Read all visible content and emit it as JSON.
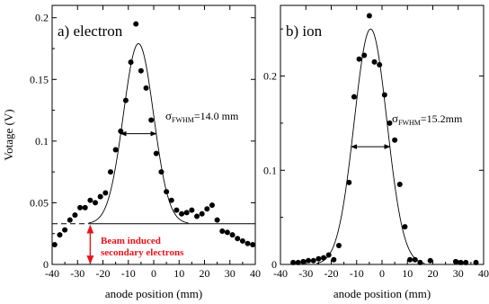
{
  "chart_data": [
    {
      "type": "scatter",
      "panel_label": "a) electron",
      "xlabel": "anode position (mm)",
      "ylabel": "Votage (V)",
      "xlim": [
        -40,
        40
      ],
      "ylim": [
        0,
        0.21
      ],
      "xticks": [
        -40,
        -30,
        -20,
        -10,
        0,
        10,
        20,
        30,
        40
      ],
      "yticks": [
        0,
        0.05,
        0.1,
        0.15,
        0.2
      ],
      "ytick_labels": [
        "0",
        "0.05",
        "0.1",
        "0.15",
        "0.2"
      ],
      "points": [
        {
          "x": -39,
          "y": 0.016
        },
        {
          "x": -37,
          "y": 0.024
        },
        {
          "x": -35,
          "y": 0.028
        },
        {
          "x": -33,
          "y": 0.036
        },
        {
          "x": -31,
          "y": 0.04
        },
        {
          "x": -29,
          "y": 0.046
        },
        {
          "x": -27,
          "y": 0.046
        },
        {
          "x": -25,
          "y": 0.052
        },
        {
          "x": -23,
          "y": 0.05
        },
        {
          "x": -21,
          "y": 0.055
        },
        {
          "x": -19,
          "y": 0.058
        },
        {
          "x": -17,
          "y": 0.075
        },
        {
          "x": -15,
          "y": 0.093
        },
        {
          "x": -13,
          "y": 0.108
        },
        {
          "x": -11,
          "y": 0.133
        },
        {
          "x": -9,
          "y": 0.164
        },
        {
          "x": -7,
          "y": 0.195
        },
        {
          "x": -5,
          "y": 0.157
        },
        {
          "x": -3,
          "y": 0.143
        },
        {
          "x": -1,
          "y": 0.117
        },
        {
          "x": 1,
          "y": 0.09
        },
        {
          "x": 3,
          "y": 0.075
        },
        {
          "x": 5,
          "y": 0.059
        },
        {
          "x": 7,
          "y": 0.052
        },
        {
          "x": 9,
          "y": 0.044
        },
        {
          "x": 11,
          "y": 0.041
        },
        {
          "x": 13,
          "y": 0.042
        },
        {
          "x": 15,
          "y": 0.044
        },
        {
          "x": 17,
          "y": 0.039
        },
        {
          "x": 19,
          "y": 0.041
        },
        {
          "x": 21,
          "y": 0.045
        },
        {
          "x": 23,
          "y": 0.048
        },
        {
          "x": 25,
          "y": 0.036
        },
        {
          "x": 27,
          "y": 0.027
        },
        {
          "x": 29,
          "y": 0.026
        },
        {
          "x": 31,
          "y": 0.024
        },
        {
          "x": 33,
          "y": 0.021
        },
        {
          "x": 35,
          "y": 0.019
        },
        {
          "x": 37,
          "y": 0.017
        },
        {
          "x": 39,
          "y": 0.016
        }
      ],
      "fit": {
        "model": "gaussian",
        "center": -6,
        "amplitude": 0.146,
        "baseline": 0.033,
        "fwhm_mm": 14.0
      },
      "baseline_level": 0.033,
      "fwhm_symbol": "σ",
      "fwhm_sub": "FWHM",
      "fwhm_text": "=14.0 mm",
      "note_line1": "Beam induced",
      "note_line2": "secondary electrons"
    },
    {
      "type": "scatter",
      "panel_label": "b) ion",
      "xlabel": "anode position (mm)",
      "xlim": [
        -40,
        40
      ],
      "ylim": [
        0,
        0.275
      ],
      "xticks": [
        -40,
        -30,
        -20,
        -10,
        0,
        10,
        20,
        30,
        40
      ],
      "yticks": [
        0,
        0.1,
        0.2
      ],
      "ytick_labels": [
        "0",
        "0.1",
        "0.2"
      ],
      "points": [
        {
          "x": -35,
          "y": 0.002
        },
        {
          "x": -33,
          "y": 0.002
        },
        {
          "x": -31,
          "y": 0.003
        },
        {
          "x": -29,
          "y": 0.004
        },
        {
          "x": -27,
          "y": 0.004
        },
        {
          "x": -25,
          "y": 0.006
        },
        {
          "x": -23,
          "y": 0.007
        },
        {
          "x": -21,
          "y": 0.01
        },
        {
          "x": -19,
          "y": 0.005
        },
        {
          "x": -17,
          "y": 0.02
        },
        {
          "x": -13,
          "y": 0.087
        },
        {
          "x": -11,
          "y": 0.178
        },
        {
          "x": -9,
          "y": 0.218
        },
        {
          "x": -7,
          "y": 0.222
        },
        {
          "x": -5,
          "y": 0.264
        },
        {
          "x": -3,
          "y": 0.215
        },
        {
          "x": -1,
          "y": 0.212
        },
        {
          "x": 1,
          "y": 0.18
        },
        {
          "x": 3,
          "y": 0.15
        },
        {
          "x": 5,
          "y": 0.132
        },
        {
          "x": 7,
          "y": 0.085
        },
        {
          "x": 9,
          "y": 0.04
        },
        {
          "x": 11,
          "y": 0.005
        },
        {
          "x": 13,
          "y": 0.005
        },
        {
          "x": 15,
          "y": 0.002
        },
        {
          "x": 19,
          "y": 0.004
        },
        {
          "x": 29,
          "y": 0.003
        },
        {
          "x": 31,
          "y": 0.002
        },
        {
          "x": 33,
          "y": 0.002
        },
        {
          "x": 37,
          "y": 0.002
        }
      ],
      "fit": {
        "model": "gaussian",
        "center": -4.5,
        "amplitude": 0.25,
        "baseline": 0.0,
        "fwhm_mm": 15.2
      },
      "fwhm_symbol": "σ",
      "fwhm_sub": "FWHM",
      "fwhm_text": "=15.2mm"
    }
  ]
}
